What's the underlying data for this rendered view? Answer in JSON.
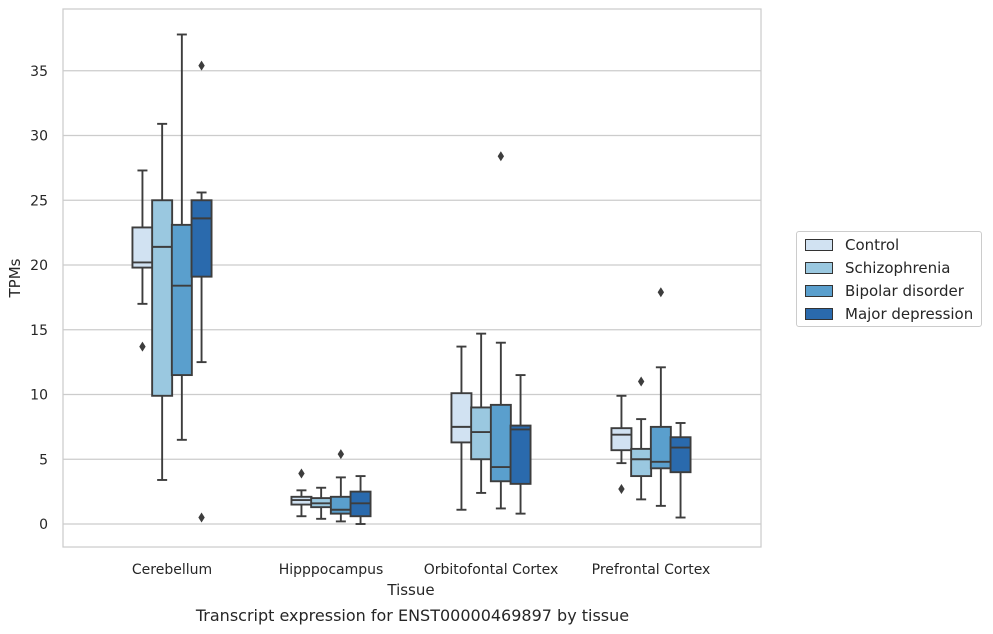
{
  "chart_data": {
    "type": "box",
    "title": "",
    "xlabel": "Tissue",
    "ylabel": "TPMs",
    "ylim": [
      -1.8,
      39.5
    ],
    "yticks": [
      0,
      5,
      10,
      15,
      20,
      25,
      30,
      35
    ],
    "grid": "horizontal",
    "legend_position": "right",
    "categories": [
      "Cerebellum",
      "Hipppocampus",
      "Orbitofontal Cortex",
      "Prefrontal Cortex"
    ],
    "series": [
      {
        "name": "Control",
        "color": "#d1e2f2",
        "boxes": [
          {
            "whislo": 17.0,
            "q1": 19.8,
            "med": 20.2,
            "q3": 22.9,
            "whishi": 27.3,
            "fliers": [
              13.7
            ]
          },
          {
            "whislo": 0.6,
            "q1": 1.5,
            "med": 1.85,
            "q3": 2.1,
            "whishi": 2.6,
            "fliers": [
              3.9
            ]
          },
          {
            "whislo": 1.1,
            "q1": 6.3,
            "med": 7.5,
            "q3": 10.1,
            "whishi": 13.7,
            "fliers": []
          },
          {
            "whislo": 4.7,
            "q1": 5.7,
            "med": 6.9,
            "q3": 7.4,
            "whishi": 9.9,
            "fliers": [
              2.7
            ]
          }
        ]
      },
      {
        "name": "Schizophrenia",
        "color": "#9ac8e0",
        "boxes": [
          {
            "whislo": 3.4,
            "q1": 9.9,
            "med": 21.4,
            "q3": 25.0,
            "whishi": 30.9,
            "fliers": []
          },
          {
            "whislo": 0.4,
            "q1": 1.3,
            "med": 1.6,
            "q3": 2.0,
            "whishi": 2.8,
            "fliers": []
          },
          {
            "whislo": 2.4,
            "q1": 5.0,
            "med": 7.1,
            "q3": 9.0,
            "whishi": 14.7,
            "fliers": []
          },
          {
            "whislo": 1.9,
            "q1": 3.7,
            "med": 5.0,
            "q3": 5.8,
            "whishi": 8.1,
            "fliers": [
              11.0
            ]
          }
        ]
      },
      {
        "name": "Bipolar disorder",
        "color": "#5a9fcd",
        "boxes": [
          {
            "whislo": 6.5,
            "q1": 11.5,
            "med": 18.4,
            "q3": 23.1,
            "whishi": 37.8,
            "fliers": []
          },
          {
            "whislo": 0.2,
            "q1": 0.8,
            "med": 1.1,
            "q3": 2.1,
            "whishi": 3.6,
            "fliers": [
              5.4
            ]
          },
          {
            "whislo": 1.2,
            "q1": 3.3,
            "med": 4.4,
            "q3": 9.2,
            "whishi": 14.0,
            "fliers": [
              28.4
            ]
          },
          {
            "whislo": 1.4,
            "q1": 4.3,
            "med": 4.8,
            "q3": 7.5,
            "whishi": 12.1,
            "fliers": [
              17.9
            ]
          }
        ]
      },
      {
        "name": "Major depression",
        "color": "#2a6aad",
        "boxes": [
          {
            "whislo": 12.5,
            "q1": 19.1,
            "med": 23.6,
            "q3": 25.0,
            "whishi": 25.6,
            "fliers": [
              35.4,
              0.5
            ]
          },
          {
            "whislo": 0.0,
            "q1": 0.6,
            "med": 1.6,
            "q3": 2.5,
            "whishi": 3.7,
            "fliers": []
          },
          {
            "whislo": 0.8,
            "q1": 3.1,
            "med": 7.3,
            "q3": 7.6,
            "whishi": 11.5,
            "fliers": []
          },
          {
            "whislo": 0.5,
            "q1": 4.0,
            "med": 5.9,
            "q3": 6.7,
            "whishi": 7.8,
            "fliers": []
          }
        ]
      }
    ],
    "caption": "Transcript expression for ENST00000469897 by tissue"
  }
}
